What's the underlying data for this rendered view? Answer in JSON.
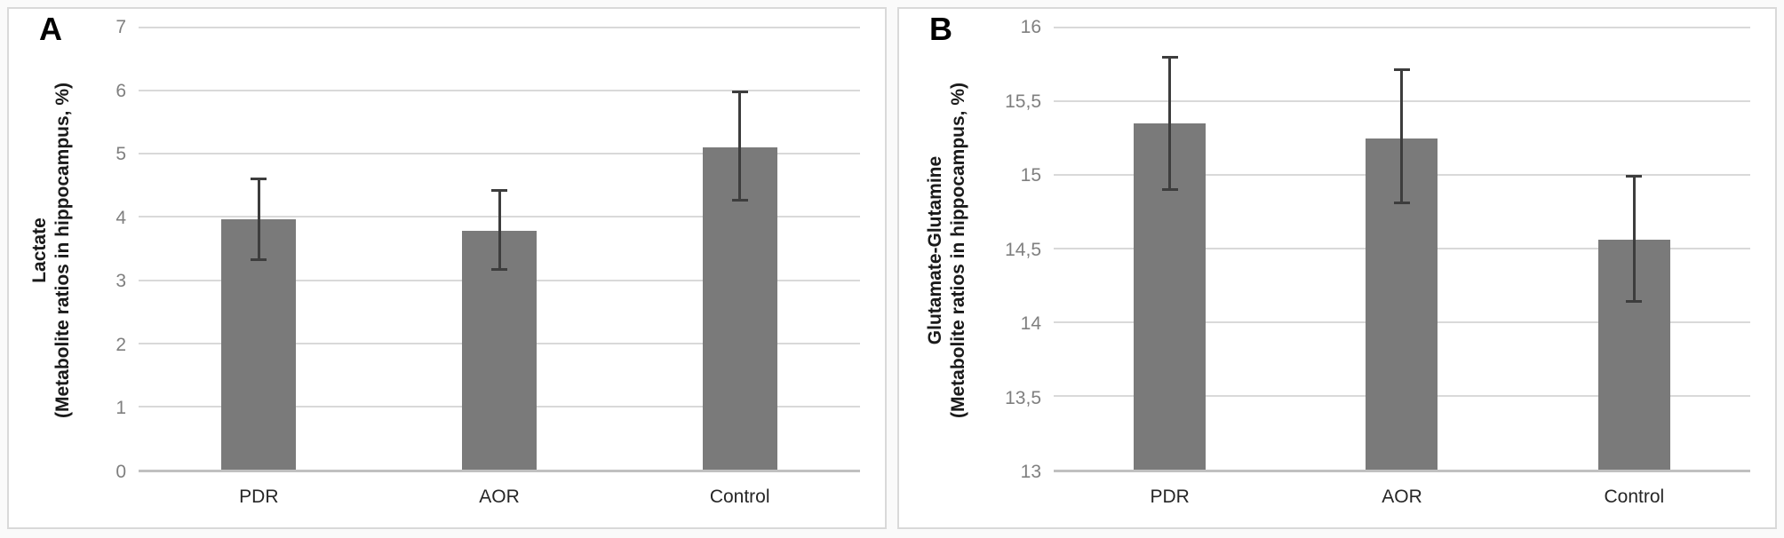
{
  "figure": {
    "description": "Two-panel bar chart of metabolite ratios in hippocampus for PDR, AOR and Control groups"
  },
  "colors": {
    "bar": "#7a7a7a",
    "error": "#3d3d3d",
    "gridline": "#d9d9d9",
    "axis_line": "#c0c0c0",
    "tick_text": "#7f7f7f",
    "category_text": "#262626",
    "title_text": "#1a1a1a",
    "panel_border": "#d9d9d9",
    "panel_background": "#ffffff"
  },
  "chart_data": [
    {
      "type": "bar",
      "panel_label": "A",
      "categories": [
        "PDR",
        "AOR",
        "Control"
      ],
      "values": [
        3.97,
        3.78,
        5.1
      ],
      "error_low": [
        3.3,
        3.15,
        4.25
      ],
      "error_high": [
        4.63,
        4.44,
        6.0
      ],
      "ylabel_line1": "Lactate",
      "ylabel_line2": "(Metabolite ratios in hippocampus, %)",
      "xlabel": "",
      "ylim": [
        0,
        7
      ],
      "ytick_step": 1,
      "ytick_labels": [
        "0",
        "1",
        "2",
        "3",
        "4",
        "5",
        "6",
        "7"
      ],
      "grid": true,
      "legend": false,
      "bar_color": "#7a7a7a",
      "error_color": "#3d3d3d"
    },
    {
      "type": "bar",
      "panel_label": "B",
      "categories": [
        "PDR",
        "AOR",
        "Control"
      ],
      "values": [
        15.35,
        15.25,
        14.56
      ],
      "error_low": [
        14.89,
        14.8,
        14.13
      ],
      "error_high": [
        15.81,
        15.72,
        15.0
      ],
      "ylabel_line1": "Glutamate-Glutamine",
      "ylabel_line2": "(Metabolite ratios in hippocampus, %)",
      "xlabel": "",
      "ylim": [
        13,
        16
      ],
      "ytick_step": 0.5,
      "ytick_labels": [
        "13",
        "13,5",
        "14",
        "14,5",
        "15",
        "15,5",
        "16"
      ],
      "grid": true,
      "legend": false,
      "bar_color": "#7a7a7a",
      "error_color": "#3d3d3d"
    }
  ]
}
